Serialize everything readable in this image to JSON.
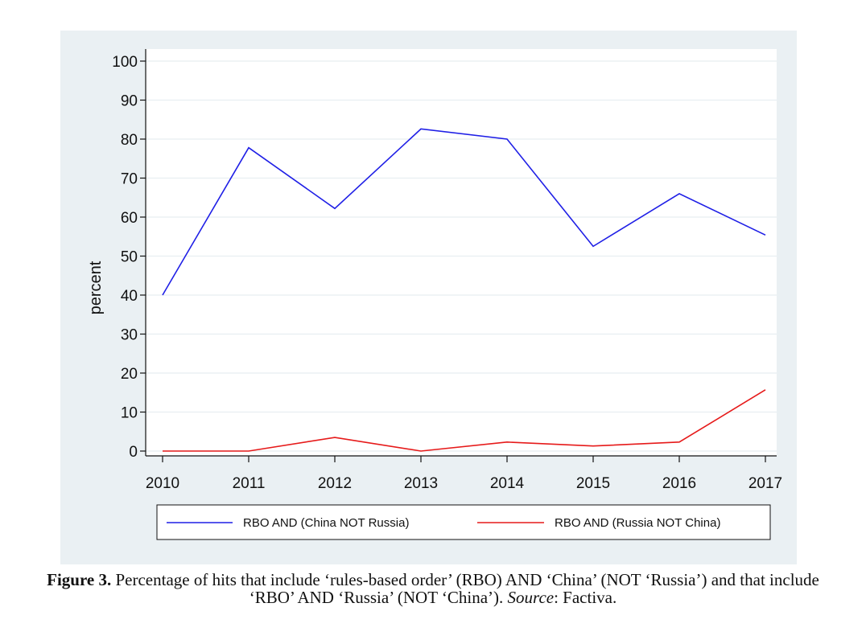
{
  "chart_data": {
    "type": "line",
    "ylabel": "percent",
    "xlabel": "",
    "ylim": [
      0,
      100
    ],
    "yticks": [
      0,
      10,
      20,
      30,
      40,
      50,
      60,
      70,
      80,
      90,
      100
    ],
    "x": [
      2010,
      2011,
      2012,
      2013,
      2014,
      2015,
      2016,
      2017
    ],
    "grid": true,
    "legend_position": "bottom",
    "series": [
      {
        "name": "RBO AND (China NOT Russia)",
        "color": "#1f1fe6",
        "values": [
          40,
          77.8,
          62.2,
          82.6,
          80,
          52.5,
          66,
          55.4
        ]
      },
      {
        "name": "RBO AND (Russia NOT China)",
        "color": "#e61a1a",
        "values": [
          0,
          0,
          3.5,
          0,
          2.3,
          1.3,
          2.3,
          15.7
        ]
      }
    ]
  },
  "caption": {
    "label": "Figure 3.",
    "text": "Percentage of hits that include ‘rules-based order’ (RBO) AND ‘China’ (NOT ‘Russia’) and that include ‘RBO’ AND ‘Russia’ (NOT ‘China’).",
    "source_label": "Source",
    "source_value": ": Factiva."
  }
}
